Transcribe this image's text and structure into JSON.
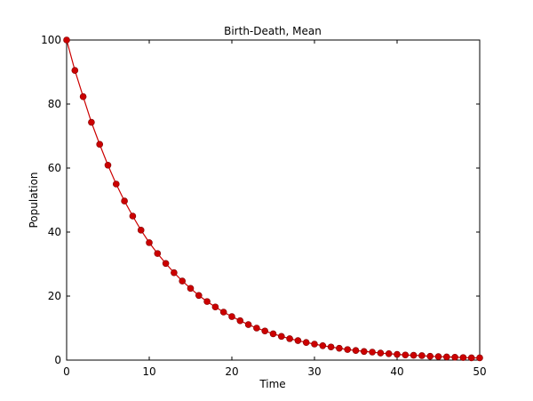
{
  "chart_data": {
    "type": "line",
    "title": "Birth-Death, Mean",
    "xlabel": "Time",
    "ylabel": "Population",
    "xlim": [
      0,
      50
    ],
    "ylim": [
      0,
      100
    ],
    "xticks": [
      "0",
      "10",
      "20",
      "30",
      "40",
      "50"
    ],
    "yticks": [
      "0",
      "20",
      "40",
      "60",
      "80",
      "100"
    ],
    "grid": false,
    "legend": "none",
    "color": "#cc0000",
    "marker": "circle",
    "series": [
      {
        "x": [
          0,
          1,
          2,
          3,
          4,
          5,
          6,
          7,
          8,
          9,
          10,
          11,
          12,
          13,
          14,
          15,
          16,
          17,
          18,
          19,
          20,
          21,
          22,
          23,
          24,
          25,
          26,
          27,
          28,
          29,
          30,
          31,
          32,
          33,
          34,
          35,
          36,
          37,
          38,
          39,
          40,
          41,
          42,
          43,
          44,
          45,
          46,
          47,
          48,
          49,
          50
        ],
        "values": [
          100.0,
          90.5,
          82.3,
          74.3,
          67.4,
          60.9,
          55.0,
          49.7,
          45.0,
          40.6,
          36.7,
          33.3,
          30.2,
          27.3,
          24.7,
          22.4,
          20.2,
          18.3,
          16.6,
          15.0,
          13.6,
          12.3,
          11.1,
          10.0,
          9.1,
          8.2,
          7.4,
          6.7,
          6.1,
          5.5,
          5.0,
          4.5,
          4.1,
          3.7,
          3.3,
          3.0,
          2.7,
          2.5,
          2.2,
          2.0,
          1.8,
          1.6,
          1.5,
          1.4,
          1.2,
          1.1,
          1.0,
          0.9,
          0.8,
          0.7,
          0.7
        ]
      }
    ]
  }
}
